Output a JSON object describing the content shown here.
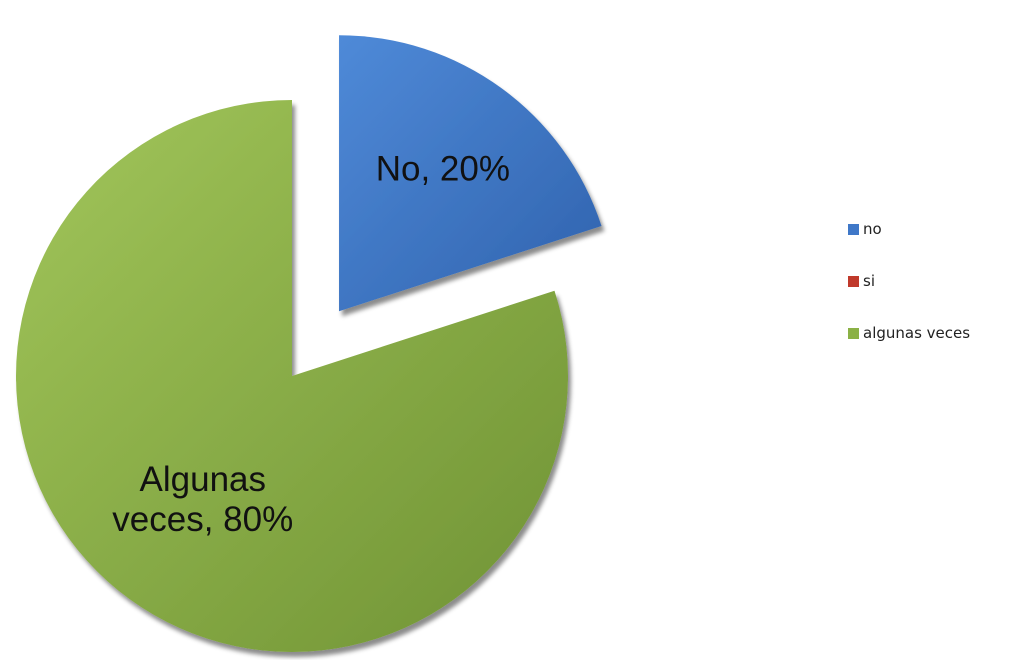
{
  "chart_data": {
    "type": "pie",
    "title": "",
    "slices": [
      {
        "legend": "no",
        "value": 20,
        "label": "No, 20%",
        "color": "#3f78c8",
        "exploded": true
      },
      {
        "legend": "si",
        "value": 0,
        "label": "",
        "color": "#c0392b",
        "exploded": false
      },
      {
        "legend": "algunas veces",
        "value": 80,
        "label": "Algunas veces, 80%",
        "color": "#8bb145",
        "exploded": false
      }
    ],
    "legend_position": "right"
  },
  "legend": {
    "items": [
      {
        "label": "no",
        "color": "#3f78c8"
      },
      {
        "label": "si",
        "color": "#c0392b"
      },
      {
        "label": "algunas veces",
        "color": "#8bb145"
      }
    ]
  }
}
